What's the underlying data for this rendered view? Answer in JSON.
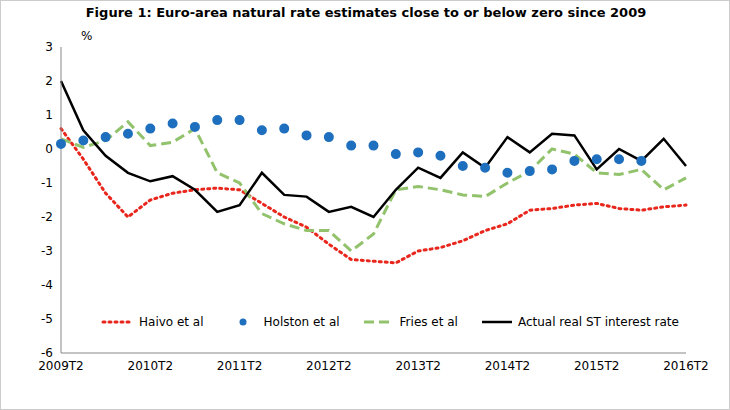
{
  "chart_data": {
    "type": "line",
    "title": "Figure 1: Euro-area natural rate estimates close to or below zero since 2009",
    "ylabel": "%",
    "categories": [
      "2009T2",
      null,
      null,
      null,
      "2010T2",
      null,
      null,
      null,
      "2011T2",
      null,
      null,
      null,
      "2012T2",
      null,
      null,
      null,
      "2013T2",
      null,
      null,
      null,
      "2014T2",
      null,
      null,
      null,
      "2015T2",
      null,
      null,
      null,
      "2016T2"
    ],
    "ylim": [
      -6,
      3
    ],
    "yticks": [
      -6,
      -5,
      -4,
      -3,
      -2,
      -1,
      0,
      1,
      2,
      3
    ],
    "grid": false,
    "legend": "bottom",
    "series": [
      {
        "name": "Haivo et al",
        "color": "#e8261c",
        "line_style": "dotted",
        "marker": "none",
        "values": [
          0.6,
          -0.3,
          -1.3,
          -2.0,
          -1.5,
          -1.3,
          -1.2,
          -1.15,
          -1.2,
          -1.6,
          -2.0,
          -2.3,
          -2.8,
          -3.25,
          -3.3,
          -3.35,
          -3.0,
          -2.9,
          -2.7,
          -2.4,
          -2.2,
          -1.8,
          -1.75,
          -1.65,
          -1.6,
          -1.75,
          -1.8,
          -1.7,
          -1.65
        ]
      },
      {
        "name": "Holston et al",
        "color": "#1f6fbf",
        "line_style": "none",
        "marker": "circle",
        "values": [
          0.15,
          0.25,
          0.35,
          0.45,
          0.6,
          0.75,
          0.65,
          0.85,
          0.85,
          0.55,
          0.6,
          0.4,
          0.35,
          0.1,
          0.1,
          -0.15,
          -0.1,
          -0.2,
          -0.5,
          -0.55,
          -0.7,
          -0.65,
          -0.6,
          -0.35,
          -0.3,
          -0.3,
          -0.35,
          null,
          null
        ]
      },
      {
        "name": "Fries et al",
        "color": "#92c36c",
        "line_style": "dashed",
        "marker": "none",
        "values": [
          0.3,
          0.05,
          0.25,
          0.8,
          0.1,
          0.2,
          0.6,
          -0.7,
          -1.0,
          -1.9,
          -2.2,
          -2.4,
          -2.4,
          -3.0,
          -2.5,
          -1.2,
          -1.1,
          -1.2,
          -1.35,
          -1.4,
          -1.0,
          -0.65,
          0.0,
          -0.15,
          -0.7,
          -0.75,
          -0.6,
          -1.2,
          -0.85
        ]
      },
      {
        "name": "Actual real ST interest rate",
        "color": "#000000",
        "line_style": "solid",
        "marker": "none",
        "values": [
          2.0,
          0.55,
          -0.2,
          -0.7,
          -0.95,
          -0.8,
          -1.2,
          -1.85,
          -1.65,
          -0.7,
          -1.35,
          -1.4,
          -1.85,
          -1.7,
          -2.0,
          -1.2,
          -0.55,
          -0.85,
          -0.1,
          -0.55,
          0.35,
          -0.1,
          0.45,
          0.4,
          -0.6,
          0.0,
          -0.35,
          0.3,
          -0.5
        ]
      }
    ]
  }
}
